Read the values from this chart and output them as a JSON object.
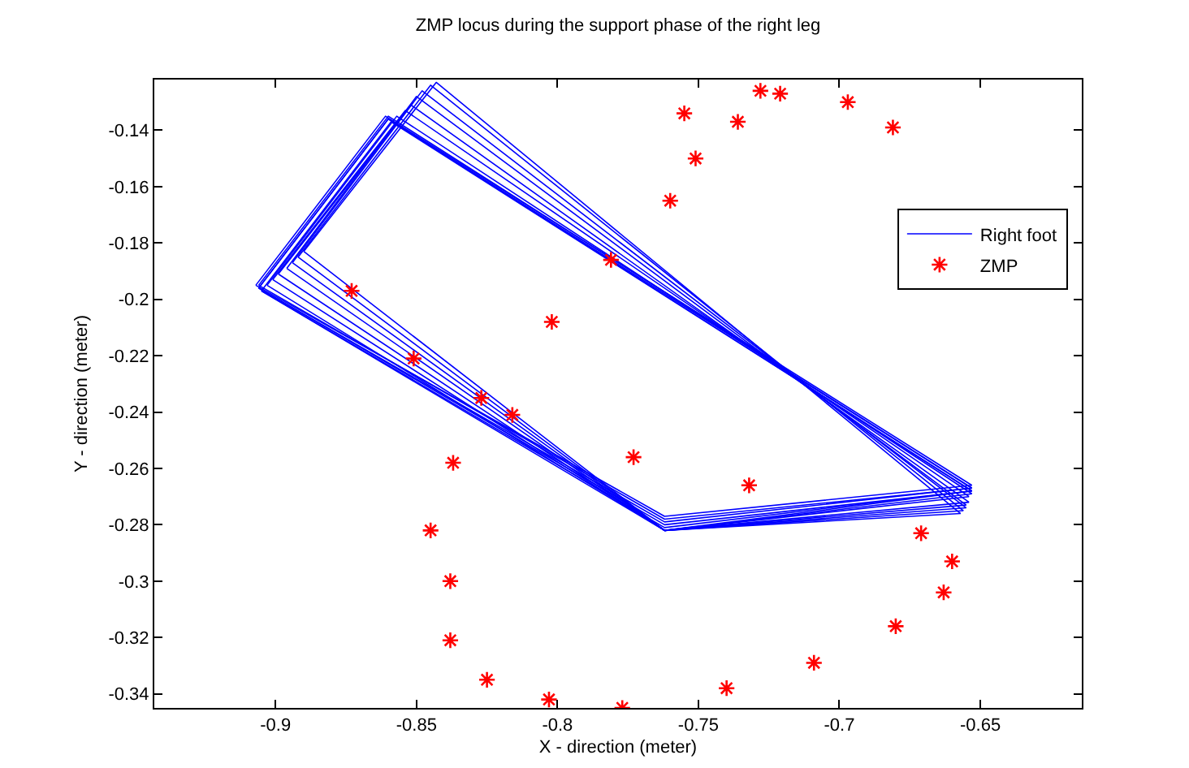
{
  "chart_data": {
    "type": "line",
    "title": "ZMP locus during the support phase of the right leg",
    "xlabel": "X - direction (meter)",
    "ylabel": "Y - direction (meter)",
    "xlim": [
      -0.943,
      -0.614
    ],
    "ylim": [
      -0.345,
      -0.122
    ],
    "xticks": [
      -0.9,
      -0.85,
      -0.8,
      -0.75,
      -0.7,
      -0.65
    ],
    "yticks": [
      -0.34,
      -0.32,
      -0.3,
      -0.28,
      -0.26,
      -0.24,
      -0.22,
      -0.2,
      -0.18,
      -0.16,
      -0.14
    ],
    "grid": false,
    "legend": "right",
    "series": [
      {
        "name": "Right foot",
        "color": "#0000ff",
        "x": [
          -0.89,
          -0.843,
          -0.657
        ],
        "values": [
          -0.183,
          -0.123,
          -0.276
        ]
      },
      {
        "color": "#0000ff",
        "x": [
          -0.89,
          -0.762,
          -0.657
        ],
        "values": [
          -0.183,
          -0.282,
          -0.276
        ]
      },
      {
        "color": "#0000ff",
        "x": [
          -0.892,
          -0.845,
          -0.656
        ],
        "values": [
          -0.185,
          -0.124,
          -0.275
        ]
      },
      {
        "color": "#0000ff",
        "x": [
          -0.892,
          -0.762,
          -0.656
        ],
        "values": [
          -0.185,
          -0.282,
          -0.275
        ]
      },
      {
        "color": "#0000ff",
        "x": [
          -0.894,
          -0.848,
          -0.655
        ],
        "values": [
          -0.187,
          -0.126,
          -0.274
        ]
      },
      {
        "color": "#0000ff",
        "x": [
          -0.894,
          -0.762,
          -0.655
        ],
        "values": [
          -0.187,
          -0.282,
          -0.274
        ]
      },
      {
        "color": "#0000ff",
        "x": [
          -0.896,
          -0.85,
          -0.655
        ],
        "values": [
          -0.189,
          -0.128,
          -0.273
        ]
      },
      {
        "color": "#0000ff",
        "x": [
          -0.896,
          -0.762,
          -0.655
        ],
        "values": [
          -0.189,
          -0.282,
          -0.273
        ]
      },
      {
        "color": "#0000ff",
        "x": [
          -0.899,
          -0.852,
          -0.654
        ],
        "values": [
          -0.191,
          -0.131,
          -0.272
        ]
      },
      {
        "color": "#0000ff",
        "x": [
          -0.899,
          -0.762,
          -0.654
        ],
        "values": [
          -0.191,
          -0.282,
          -0.272
        ]
      },
      {
        "color": "#0000ff",
        "x": [
          -0.901,
          -0.854,
          -0.654
        ],
        "values": [
          -0.193,
          -0.133,
          -0.27
        ]
      },
      {
        "color": "#0000ff",
        "x": [
          -0.901,
          -0.762,
          -0.654
        ],
        "values": [
          -0.193,
          -0.282,
          -0.27
        ]
      },
      {
        "color": "#0000ff",
        "x": [
          -0.903,
          -0.857,
          -0.653
        ],
        "values": [
          -0.195,
          -0.135,
          -0.269
        ]
      },
      {
        "color": "#0000ff",
        "x": [
          -0.903,
          -0.762,
          -0.653
        ],
        "values": [
          -0.195,
          -0.282,
          -0.269
        ]
      },
      {
        "color": "#0000ff",
        "x": [
          -0.905,
          -0.859,
          -0.653
        ],
        "values": [
          -0.197,
          -0.137,
          -0.268
        ]
      },
      {
        "color": "#0000ff",
        "x": [
          -0.905,
          -0.762,
          -0.653
        ],
        "values": [
          -0.197,
          -0.282,
          -0.268
        ]
      },
      {
        "color": "#0000ff",
        "x": [
          -0.905,
          -0.762,
          -0.653
        ],
        "values": [
          -0.197,
          -0.281,
          -0.268
        ]
      },
      {
        "color": "#0000ff",
        "x": [
          -0.906,
          -0.86,
          -0.653
        ],
        "values": [
          -0.196,
          -0.136,
          -0.268
        ]
      },
      {
        "color": "#0000ff",
        "x": [
          -0.906,
          -0.762,
          -0.653
        ],
        "values": [
          -0.196,
          -0.28,
          -0.268
        ]
      },
      {
        "color": "#0000ff",
        "x": [
          -0.906,
          -0.86,
          -0.653
        ],
        "values": [
          -0.196,
          -0.136,
          -0.267
        ]
      },
      {
        "color": "#0000ff",
        "x": [
          -0.906,
          -0.762,
          -0.653
        ],
        "values": [
          -0.196,
          -0.279,
          -0.267
        ]
      },
      {
        "color": "#0000ff",
        "x": [
          -0.906,
          -0.86,
          -0.653
        ],
        "values": [
          -0.195,
          -0.135,
          -0.267
        ]
      },
      {
        "color": "#0000ff",
        "x": [
          -0.906,
          -0.762,
          -0.653
        ],
        "values": [
          -0.195,
          -0.278,
          -0.267
        ]
      },
      {
        "color": "#0000ff",
        "x": [
          -0.907,
          -0.861,
          -0.653
        ],
        "values": [
          -0.195,
          -0.135,
          -0.266
        ]
      },
      {
        "color": "#0000ff",
        "x": [
          -0.907,
          -0.762,
          -0.653
        ],
        "values": [
          -0.195,
          -0.277,
          -0.266
        ]
      },
      {
        "name": "ZMP",
        "type": "scatter",
        "color": "#ff0000",
        "marker": "cross",
        "x": [
          -0.873,
          -0.851,
          -0.827,
          -0.816,
          -0.837,
          -0.845,
          -0.838,
          -0.838,
          -0.825,
          -0.803,
          -0.777,
          -0.74,
          -0.709,
          -0.68,
          -0.663,
          -0.66,
          -0.671,
          -0.732,
          -0.773,
          -0.802,
          -0.781,
          -0.76,
          -0.751,
          -0.755,
          -0.736,
          -0.728,
          -0.721,
          -0.697,
          -0.681
        ],
        "values": [
          -0.197,
          -0.221,
          -0.235,
          -0.241,
          -0.258,
          -0.282,
          -0.3,
          -0.321,
          -0.335,
          -0.342,
          -0.345,
          -0.338,
          -0.329,
          -0.316,
          -0.304,
          -0.293,
          -0.283,
          -0.266,
          -0.256,
          -0.208,
          -0.186,
          -0.165,
          -0.15,
          -0.134,
          -0.137,
          -0.126,
          -0.127,
          -0.13,
          -0.139
        ]
      }
    ]
  }
}
